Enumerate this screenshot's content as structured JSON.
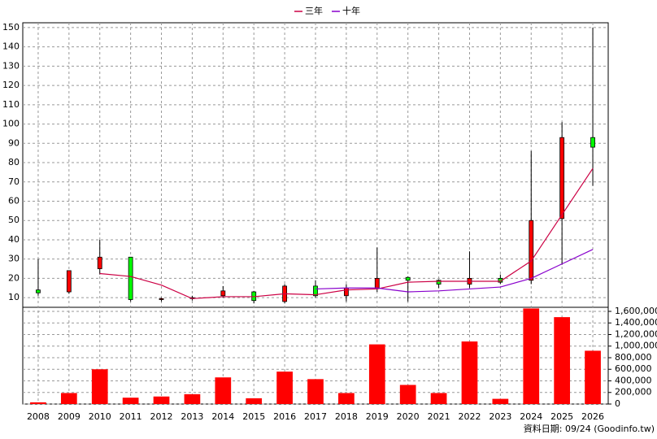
{
  "chart_data": {
    "type": "candlestick",
    "categories": [
      "2008",
      "2009",
      "2010",
      "2011",
      "2012",
      "2013",
      "2014",
      "2015",
      "2016",
      "2017",
      "2018",
      "2019",
      "2020",
      "2021",
      "2022",
      "2023",
      "2024",
      "2025",
      "2026"
    ],
    "open": [
      14,
      13,
      25,
      31,
      9,
      9.5,
      11,
      13,
      8,
      16,
      11,
      15,
      20.5,
      19,
      17,
      20,
      19,
      51,
      93
    ],
    "close": [
      12.5,
      24,
      31,
      9,
      9.5,
      10,
      13.5,
      8.5,
      16,
      11,
      15,
      20,
      19,
      17,
      20,
      18,
      50,
      93,
      88
    ],
    "high": [
      30,
      24,
      40,
      31,
      10,
      11,
      16,
      13.5,
      17,
      19,
      17,
      36,
      21,
      19.5,
      34,
      22,
      86,
      101,
      150
    ],
    "low": [
      11,
      12,
      22,
      8,
      8,
      8.5,
      10,
      7,
      7,
      10,
      8,
      13,
      8,
      15,
      15,
      17,
      17,
      27,
      68
    ],
    "up_color": "#ff0000",
    "down_color": "#00ff00",
    "series": [
      {
        "name": "三年",
        "color": "#cc0044",
        "values": [
          null,
          null,
          22.5,
          21,
          16.5,
          9.5,
          10.5,
          10.5,
          12,
          11.5,
          14,
          14.5,
          18,
          18.5,
          18.5,
          18.5,
          29,
          53,
          77
        ]
      },
      {
        "name": "十年",
        "color": "#8800cc",
        "values": [
          null,
          null,
          null,
          null,
          null,
          null,
          null,
          null,
          null,
          14.5,
          15,
          15,
          13,
          13.5,
          14.5,
          15.5,
          20,
          27.5,
          35
        ]
      }
    ],
    "ylim": [
      5,
      152.5
    ],
    "yticks": [
      10,
      20,
      30,
      40,
      50,
      60,
      70,
      80,
      90,
      100,
      110,
      120,
      130,
      140,
      150
    ],
    "grid": true,
    "volume": {
      "type": "bar",
      "color": "#ff0000",
      "values": [
        30000,
        190000,
        600000,
        110000,
        130000,
        170000,
        460000,
        100000,
        560000,
        430000,
        190000,
        1030000,
        330000,
        190000,
        1080000,
        90000,
        1650000,
        1500000,
        920000
      ],
      "ylim": [
        0,
        1670000
      ],
      "yticks": [
        {
          "value": 0,
          "label": "0"
        },
        {
          "value": 200000,
          "label": "200,000"
        },
        {
          "value": 400000,
          "label": "400,000"
        },
        {
          "value": 600000,
          "label": "600,000"
        },
        {
          "value": 800000,
          "label": "800,000"
        },
        {
          "value": 1000000,
          "label": "1,000,000"
        },
        {
          "value": 1200000,
          "label": "1,200,000"
        },
        {
          "value": 1400000,
          "label": "1,400,000"
        },
        {
          "value": 1600000,
          "label": "1,600,000"
        }
      ]
    },
    "source_note": "資料日期: 09/24 (Goodinfo.tw)"
  }
}
